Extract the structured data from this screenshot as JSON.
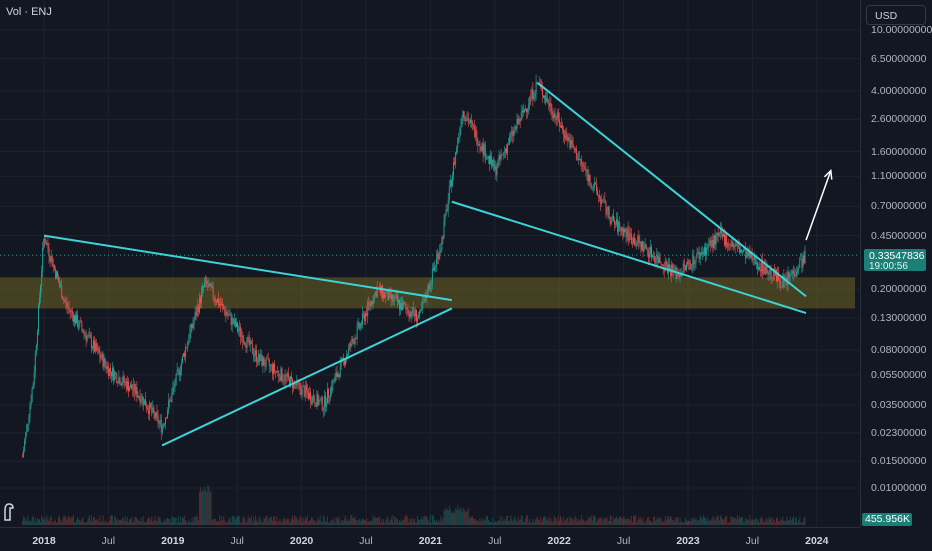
{
  "legend": {
    "text": "Vol · ENJ"
  },
  "price_scale": {
    "currency": "USD",
    "labels": [
      "10.00000000",
      "6.50000000",
      "4.00000000",
      "2.60000000",
      "1.60000000",
      "1.10000000",
      "0.70000000",
      "0.45000000",
      "0.20000000",
      "0.13000000",
      "0.08000000",
      "0.05500000",
      "0.03500000",
      "0.02300000",
      "0.01500000",
      "0.01000000"
    ],
    "values": [
      10,
      6.5,
      4,
      2.6,
      1.6,
      1.1,
      0.7,
      0.45,
      0.2,
      0.13,
      0.08,
      0.055,
      0.035,
      0.023,
      0.015,
      0.01
    ],
    "scale": "log"
  },
  "current_price": {
    "value": "0.33547836",
    "countdown": "19:00:56",
    "color": "#1c7f77"
  },
  "volume": {
    "value": "455.956K"
  },
  "time_scale": {
    "labels": [
      {
        "text": "2018",
        "year": true
      },
      {
        "text": "Jul",
        "year": false
      },
      {
        "text": "2019",
        "year": true
      },
      {
        "text": "Jul",
        "year": false
      },
      {
        "text": "2020",
        "year": true
      },
      {
        "text": "Jul",
        "year": false
      },
      {
        "text": "2021",
        "year": true
      },
      {
        "text": "Jul",
        "year": false
      },
      {
        "text": "2022",
        "year": true
      },
      {
        "text": "Jul",
        "year": false
      },
      {
        "text": "2023",
        "year": true
      },
      {
        "text": "Jul",
        "year": false
      },
      {
        "text": "2024",
        "year": true
      }
    ]
  },
  "colors": {
    "background": "#131722",
    "up": "#26a69a",
    "down": "#ef5350",
    "trendline": "#3dd3d6",
    "zone": "#6b6420",
    "arrow": "#ffffff"
  },
  "chart_data": {
    "type": "candlestick",
    "symbol": "ENJ",
    "quote_currency": "USD",
    "scale": "log",
    "y_range": [
      0.01,
      10
    ],
    "x_range": [
      "2017-11",
      "2023-12"
    ],
    "approximate_price_path": [
      {
        "date": "2017-11",
        "price": 0.016
      },
      {
        "date": "2017-12",
        "price": 0.05
      },
      {
        "date": "2018-01",
        "price": 0.45
      },
      {
        "date": "2018-03",
        "price": 0.16
      },
      {
        "date": "2018-07",
        "price": 0.06
      },
      {
        "date": "2018-10",
        "price": 0.04
      },
      {
        "date": "2018-12",
        "price": 0.025
      },
      {
        "date": "2019-04",
        "price": 0.22
      },
      {
        "date": "2019-09",
        "price": 0.07
      },
      {
        "date": "2020-03",
        "price": 0.035
      },
      {
        "date": "2020-08",
        "price": 0.2
      },
      {
        "date": "2020-12",
        "price": 0.13
      },
      {
        "date": "2021-02",
        "price": 0.4
      },
      {
        "date": "2021-04",
        "price": 3.0
      },
      {
        "date": "2021-07",
        "price": 1.2
      },
      {
        "date": "2021-11",
        "price": 4.5
      },
      {
        "date": "2022-06",
        "price": 0.55
      },
      {
        "date": "2022-12",
        "price": 0.25
      },
      {
        "date": "2023-04",
        "price": 0.45
      },
      {
        "date": "2023-10",
        "price": 0.22
      },
      {
        "date": "2023-12",
        "price": 0.335
      }
    ],
    "annotations": [
      {
        "type": "trendline",
        "from": {
          "date": "2018-01",
          "price": 0.45
        },
        "to": {
          "date": "2021-03",
          "price": 0.17
        }
      },
      {
        "type": "trendline",
        "from": {
          "date": "2018-12",
          "price": 0.019
        },
        "to": {
          "date": "2021-03",
          "price": 0.15
        }
      },
      {
        "type": "trendline",
        "from": {
          "date": "2021-11",
          "price": 4.5
        },
        "to": {
          "date": "2023-12",
          "price": 0.18
        }
      },
      {
        "type": "trendline",
        "from": {
          "date": "2021-03",
          "price": 0.75
        },
        "to": {
          "date": "2023-12",
          "price": 0.14
        }
      },
      {
        "type": "zone",
        "price_high": 0.24,
        "price_low": 0.15
      },
      {
        "type": "arrow",
        "from": {
          "date": "2023-12",
          "price": 0.42
        },
        "to": {
          "date": "2024-01",
          "price": 1.2
        }
      }
    ]
  }
}
